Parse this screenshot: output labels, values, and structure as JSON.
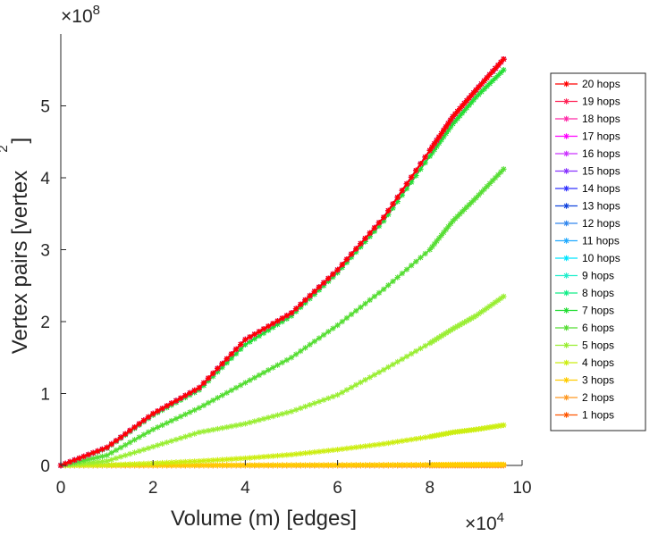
{
  "chart_data": {
    "type": "line",
    "title": "",
    "xlabel": "Volume (m) [edges]",
    "ylabel": "Vertex pairs [vertex",
    "ylabel_superscript": "2",
    "ylabel_close": "]",
    "x_exponent_base": "×10",
    "x_exponent_power": "4",
    "y_exponent_base": "×10",
    "y_exponent_power": "8",
    "xlim": [
      0,
      10
    ],
    "ylim": [
      0,
      6
    ],
    "x_ticks": [
      "0",
      "2",
      "4",
      "6",
      "8",
      "10"
    ],
    "y_ticks": [
      "0",
      "1",
      "2",
      "3",
      "4",
      "5"
    ],
    "x_scale_note": "x values in units of 1e4 edges",
    "y_scale_note": "y values in units of 1e8 vertex pairs",
    "grid": false,
    "legend_position": "right",
    "series": [
      {
        "name": "20 hops",
        "color": "#ff0000",
        "x": [
          0,
          1,
          2,
          3,
          4,
          5,
          6,
          7,
          8,
          8.5,
          9,
          9.6
        ],
        "y": [
          0,
          0.25,
          0.72,
          1.08,
          1.75,
          2.12,
          2.72,
          3.45,
          4.38,
          4.85,
          5.22,
          5.65
        ]
      },
      {
        "name": "19 hops",
        "color": "#ff2255",
        "x": [
          0,
          1,
          2,
          3,
          4,
          5,
          6,
          7,
          8,
          8.5,
          9,
          9.6
        ],
        "y": [
          0,
          0.25,
          0.72,
          1.08,
          1.75,
          2.12,
          2.72,
          3.45,
          4.38,
          4.85,
          5.22,
          5.65
        ]
      },
      {
        "name": "18 hops",
        "color": "#ff2aa8",
        "x": [
          0,
          1,
          2,
          3,
          4,
          5,
          6,
          7,
          8,
          8.5,
          9,
          9.6
        ],
        "y": [
          0,
          0.25,
          0.72,
          1.08,
          1.75,
          2.12,
          2.72,
          3.45,
          4.38,
          4.85,
          5.22,
          5.65
        ]
      },
      {
        "name": "17 hops",
        "color": "#ff00ff",
        "x": [
          0,
          1,
          2,
          3,
          4,
          5,
          6,
          7,
          8,
          8.5,
          9,
          9.6
        ],
        "y": [
          0,
          0.25,
          0.72,
          1.08,
          1.75,
          2.12,
          2.72,
          3.45,
          4.38,
          4.85,
          5.22,
          5.65
        ]
      },
      {
        "name": "16 hops",
        "color": "#cc33ff",
        "x": [
          0,
          1,
          2,
          3,
          4,
          5,
          6,
          7,
          8,
          8.5,
          9,
          9.6
        ],
        "y": [
          0,
          0.25,
          0.72,
          1.08,
          1.75,
          2.12,
          2.72,
          3.45,
          4.38,
          4.85,
          5.22,
          5.65
        ]
      },
      {
        "name": "15 hops",
        "color": "#8833ff",
        "x": [
          0,
          1,
          2,
          3,
          4,
          5,
          6,
          7,
          8,
          8.5,
          9,
          9.6
        ],
        "y": [
          0,
          0.25,
          0.72,
          1.08,
          1.75,
          2.12,
          2.72,
          3.45,
          4.38,
          4.85,
          5.22,
          5.65
        ]
      },
      {
        "name": "14 hops",
        "color": "#3333ff",
        "x": [
          0,
          1,
          2,
          3,
          4,
          5,
          6,
          7,
          8,
          8.5,
          9,
          9.6
        ],
        "y": [
          0,
          0.25,
          0.72,
          1.08,
          1.75,
          2.12,
          2.72,
          3.45,
          4.38,
          4.85,
          5.22,
          5.65
        ]
      },
      {
        "name": "13 hops",
        "color": "#1144dd",
        "x": [
          0,
          1,
          2,
          3,
          4,
          5,
          6,
          7,
          8,
          8.5,
          9,
          9.6
        ],
        "y": [
          0,
          0.25,
          0.72,
          1.08,
          1.75,
          2.12,
          2.72,
          3.45,
          4.38,
          4.85,
          5.22,
          5.65
        ]
      },
      {
        "name": "12 hops",
        "color": "#3388ee",
        "x": [
          0,
          1,
          2,
          3,
          4,
          5,
          6,
          7,
          8,
          8.5,
          9,
          9.6
        ],
        "y": [
          0,
          0.25,
          0.72,
          1.08,
          1.75,
          2.12,
          2.72,
          3.45,
          4.38,
          4.85,
          5.22,
          5.65
        ]
      },
      {
        "name": "11 hops",
        "color": "#22aaff",
        "x": [
          0,
          1,
          2,
          3,
          4,
          5,
          6,
          7,
          8,
          8.5,
          9,
          9.6
        ],
        "y": [
          0,
          0.25,
          0.72,
          1.08,
          1.75,
          2.12,
          2.72,
          3.45,
          4.38,
          4.85,
          5.22,
          5.65
        ]
      },
      {
        "name": "10 hops",
        "color": "#00e5ff",
        "x": [
          0,
          1,
          2,
          3,
          4,
          5,
          6,
          7,
          8,
          8.5,
          9,
          9.6
        ],
        "y": [
          0,
          0.25,
          0.72,
          1.08,
          1.75,
          2.12,
          2.72,
          3.45,
          4.38,
          4.85,
          5.22,
          5.65
        ]
      },
      {
        "name": "9 hops",
        "color": "#22eecc",
        "x": [
          0,
          1,
          2,
          3,
          4,
          5,
          6,
          7,
          8,
          8.5,
          9,
          9.6
        ],
        "y": [
          0,
          0.25,
          0.72,
          1.08,
          1.75,
          2.12,
          2.72,
          3.45,
          4.38,
          4.85,
          5.22,
          5.65
        ]
      },
      {
        "name": "8 hops",
        "color": "#11ee88",
        "x": [
          0,
          1,
          2,
          3,
          4,
          5,
          6,
          7,
          8,
          8.5,
          9,
          9.6
        ],
        "y": [
          0,
          0.25,
          0.72,
          1.08,
          1.75,
          2.12,
          2.72,
          3.45,
          4.38,
          4.85,
          5.22,
          5.65
        ]
      },
      {
        "name": "7 hops",
        "color": "#22dd33",
        "x": [
          0,
          1,
          2,
          3,
          4,
          5,
          6,
          7,
          8,
          8.5,
          9,
          9.6
        ],
        "y": [
          0,
          0.24,
          0.7,
          1.05,
          1.68,
          2.08,
          2.68,
          3.4,
          4.3,
          4.75,
          5.12,
          5.5
        ]
      },
      {
        "name": "6 hops",
        "color": "#55dd33",
        "x": [
          0,
          1,
          2,
          3,
          4,
          5,
          6,
          7,
          8,
          8.5,
          9,
          9.6
        ],
        "y": [
          0,
          0.14,
          0.5,
          0.8,
          1.15,
          1.5,
          1.95,
          2.45,
          3.0,
          3.4,
          3.72,
          4.12
        ]
      },
      {
        "name": "5 hops",
        "color": "#99ee33",
        "x": [
          0,
          1,
          2,
          3,
          4,
          5,
          6,
          7,
          8,
          8.5,
          9,
          9.6
        ],
        "y": [
          0,
          0.06,
          0.26,
          0.46,
          0.58,
          0.75,
          0.98,
          1.33,
          1.7,
          1.9,
          2.08,
          2.35
        ]
      },
      {
        "name": "4 hops",
        "color": "#ccee11",
        "x": [
          0,
          1,
          2,
          3,
          4,
          5,
          6,
          7,
          8,
          8.5,
          9,
          9.6
        ],
        "y": [
          0,
          0.005,
          0.03,
          0.06,
          0.1,
          0.15,
          0.22,
          0.3,
          0.4,
          0.46,
          0.5,
          0.56
        ]
      },
      {
        "name": "3 hops",
        "color": "#ffcc00",
        "x": [
          0,
          1,
          2,
          3,
          4,
          5,
          6,
          7,
          8,
          8.5,
          9,
          9.6
        ],
        "y": [
          0,
          0.001,
          0.002,
          0.003,
          0.004,
          0.005,
          0.006,
          0.008,
          0.01,
          0.011,
          0.012,
          0.013
        ]
      },
      {
        "name": "2 hops",
        "color": "#ff9922",
        "x": [
          0,
          1,
          2,
          3,
          4,
          5,
          6,
          7,
          8,
          8.5,
          9,
          9.6
        ],
        "y": [
          0,
          0,
          0,
          0,
          0,
          0,
          0,
          0,
          0,
          0,
          0,
          0
        ]
      },
      {
        "name": "1 hops",
        "color": "#ff5500",
        "x": [
          0,
          1,
          2,
          3,
          4,
          5,
          6,
          7,
          8,
          8.5,
          9,
          9.6
        ],
        "y": [
          0,
          0,
          0,
          0,
          0,
          0,
          0,
          0,
          0,
          0,
          0,
          0
        ]
      }
    ]
  }
}
